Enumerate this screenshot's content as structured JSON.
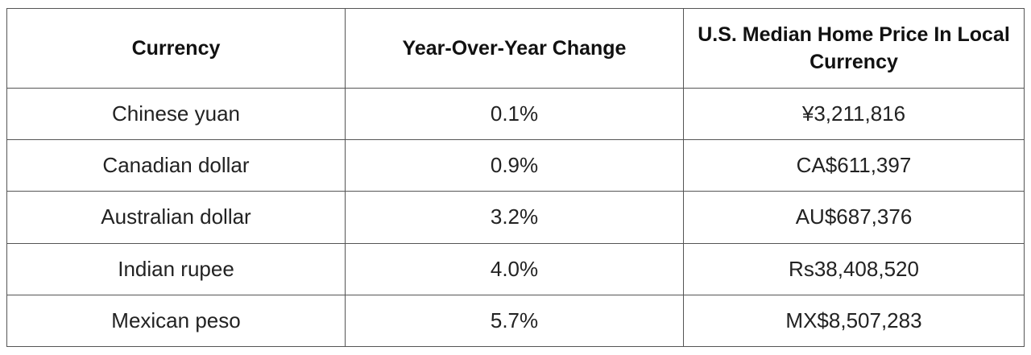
{
  "table": {
    "headers": [
      "Currency",
      "Year-Over-Year Change",
      "U.S. Median Home Price In Local Currency"
    ],
    "rows": [
      [
        "Chinese yuan",
        "0.1%",
        "¥3,211,816"
      ],
      [
        "Canadian dollar",
        "0.9%",
        "CA$611,397"
      ],
      [
        "Australian dollar",
        "3.2%",
        "AU$687,376"
      ],
      [
        "Indian rupee",
        "4.0%",
        "Rs38,408,520"
      ],
      [
        "Mexican peso",
        "5.7%",
        "MX$8,507,283"
      ]
    ]
  }
}
